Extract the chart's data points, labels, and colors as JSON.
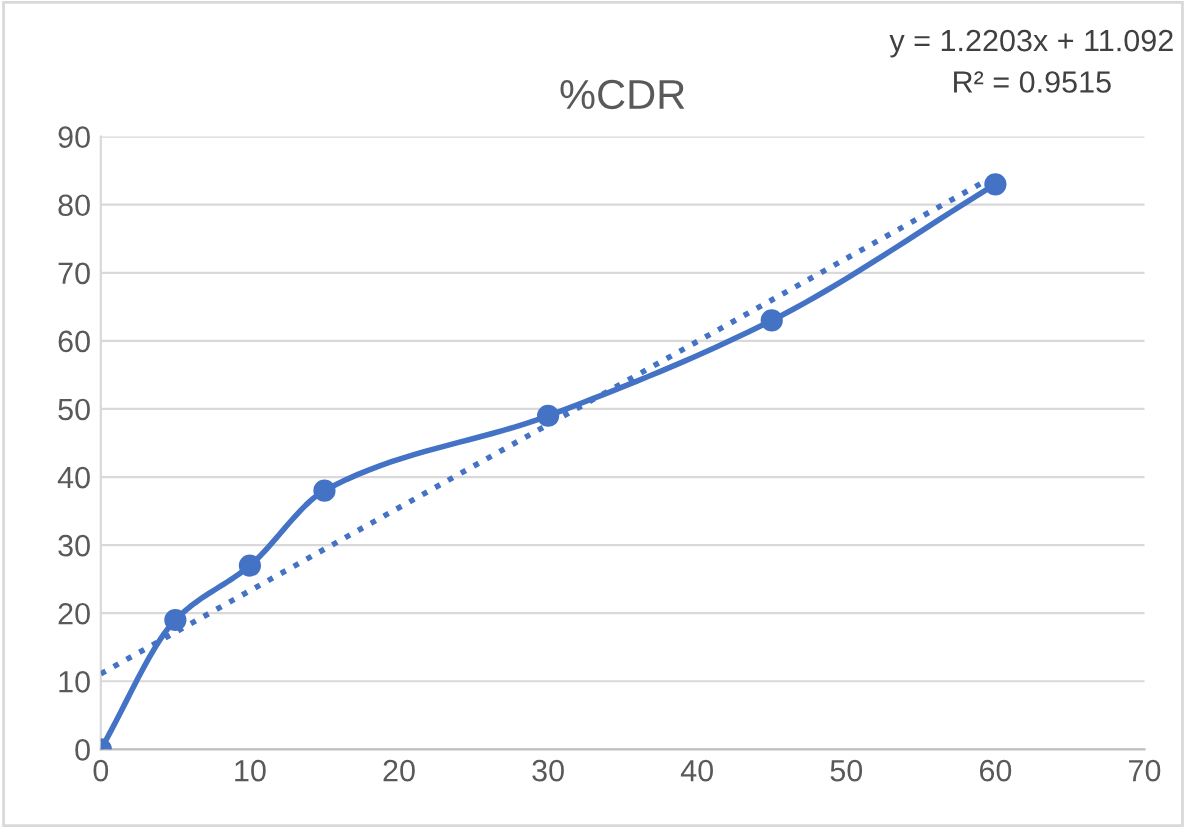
{
  "chart_data": {
    "type": "line",
    "title": "%CDR",
    "annotations": [
      "y = 1.2203x + 11.092",
      "R² = 0.9515"
    ],
    "series": [
      {
        "color": "#4472c4",
        "x": [
          0,
          5,
          10,
          15,
          30,
          45,
          60
        ],
        "values": [
          0,
          19,
          27,
          38,
          49,
          63,
          83
        ],
        "marker": "circle",
        "line_style": "solid"
      },
      {
        "color": "#4472c4",
        "x": [
          0,
          60
        ],
        "values": [
          11.1,
          84.3
        ],
        "marker": "none",
        "line_style": "dotted"
      }
    ],
    "xlim": [
      0,
      70
    ],
    "xticks": [
      0,
      10,
      20,
      30,
      40,
      50,
      60,
      70
    ],
    "ylim": [
      0,
      90
    ],
    "yticks": [
      0,
      10,
      20,
      30,
      40,
      50,
      60,
      70,
      80,
      90
    ],
    "grid": "y",
    "legend": false
  }
}
